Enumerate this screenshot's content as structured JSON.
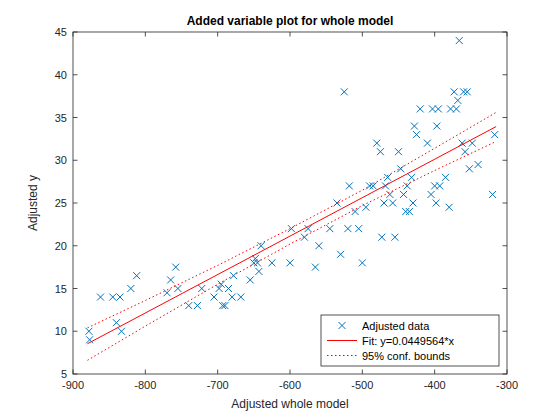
{
  "chart_data": {
    "type": "scatter",
    "title": "Added variable plot for whole model",
    "x_label": "Adjusted whole model",
    "y_label": "Adjusted y",
    "xlim": [
      -900,
      -300
    ],
    "xticks": [
      -900,
      -800,
      -700,
      -600,
      -500,
      -400,
      -300
    ],
    "ylim": [
      5,
      45
    ],
    "yticks": [
      5,
      10,
      15,
      20,
      25,
      30,
      35,
      40,
      45
    ],
    "grid": false,
    "legend": "southeast",
    "series": [
      {
        "name": "Adjusted data",
        "type": "scatter",
        "marker": "x",
        "line_style": "none",
        "color": "#0072bd",
        "x": [
          -878,
          -877,
          -862,
          -845,
          -840,
          -835,
          -833,
          -820,
          -812,
          -770,
          -765,
          -758,
          -755,
          -740,
          -728,
          -722,
          -705,
          -698,
          -695,
          -693,
          -690,
          -685,
          -680,
          -678,
          -668,
          -655,
          -650,
          -648,
          -645,
          -643,
          -640,
          -625,
          -600,
          -598,
          -580,
          -575,
          -565,
          -560,
          -545,
          -535,
          -530,
          -525,
          -520,
          -518,
          -510,
          -505,
          -500,
          -495,
          -490,
          -485,
          -480,
          -475,
          -473,
          -470,
          -468,
          -465,
          -462,
          -458,
          -455,
          -450,
          -447,
          -443,
          -440,
          -438,
          -435,
          -432,
          -430,
          -428,
          -425,
          -420,
          -410,
          -405,
          -403,
          -400,
          -398,
          -397,
          -395,
          -393,
          -385,
          -380,
          -378,
          -373,
          -370,
          -368,
          -366,
          -362,
          -360,
          -358,
          -355,
          -352,
          -348,
          -340,
          -320,
          -317
        ],
        "values": [
          10,
          9,
          14,
          14,
          11,
          14,
          10,
          15,
          16.5,
          14.5,
          16,
          17.5,
          15,
          13,
          13,
          15,
          14,
          15,
          15.5,
          13,
          13,
          15,
          14,
          16.5,
          14,
          16,
          18,
          18.5,
          18,
          17,
          20,
          18,
          18,
          22,
          21,
          22,
          17.5,
          20,
          22,
          25,
          19,
          38,
          22,
          27,
          24,
          22,
          18,
          24.5,
          27,
          27,
          32,
          31,
          21,
          25,
          27,
          28,
          26,
          25,
          21,
          31,
          29,
          26,
          24,
          27,
          24,
          28,
          25,
          34,
          33,
          36,
          32,
          26,
          36,
          27,
          25,
          34,
          36,
          27,
          28,
          24.5,
          36,
          38,
          36,
          37,
          44,
          32,
          38,
          31,
          38,
          29,
          32,
          29.5,
          26,
          33
        ]
      },
      {
        "name": "Fit: y=0.0449564*x",
        "type": "line",
        "marker": "none",
        "line_style": "solid",
        "color": "#ff0000",
        "x": [
          -880,
          -315
        ],
        "values": [
          8.54,
          33.94
        ]
      },
      {
        "name": "95% conf. bounds",
        "type": "line",
        "marker": "none",
        "line_style": "dotted",
        "color": "#ff0000",
        "x": [
          -880,
          -800,
          -700,
          -600,
          -500,
          -400,
          -315
        ],
        "upper": [
          10.4,
          13.6,
          17.7,
          22.0,
          26.5,
          31.4,
          35.6
        ],
        "lower": [
          6.6,
          10.6,
          15.5,
          20.2,
          24.7,
          28.8,
          32.2
        ]
      }
    ]
  }
}
